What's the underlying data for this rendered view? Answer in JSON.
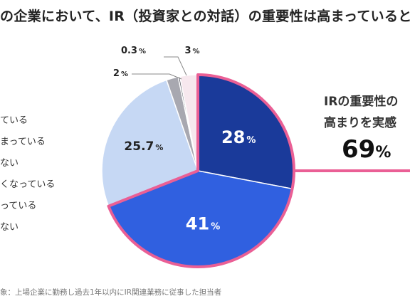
{
  "title": "の企業において、IR（投資家との対話）の重要性は高まっていると感",
  "note": "象：上場企業に勤務し過去1年以内にIR関連業務に従事した担当者",
  "callout": {
    "line1": "IRの重要性の",
    "line2": "高まりを実感",
    "value": "69",
    "unit": "%"
  },
  "legend": [
    "ている",
    "まっている",
    "ない",
    "くなっている",
    "っている",
    "ない"
  ],
  "colors": {
    "dark_blue": "#1a3a9a",
    "blue": "#3060e0",
    "light_blue": "#c6d8f4",
    "gray": "#a8a8b0",
    "dark_gray": "#555560",
    "pale_pink": "#f7e8ee",
    "highlight": "#ea5f95"
  },
  "chart_data": {
    "type": "pie",
    "title": "",
    "slices": [
      {
        "value": 28,
        "label": "28",
        "unit": "%",
        "color": "#1a3a9a",
        "text_color": "#ffffff",
        "highlight": true
      },
      {
        "value": 41,
        "label": "41",
        "unit": "%",
        "color": "#3060e0",
        "text_color": "#ffffff",
        "highlight": true
      },
      {
        "value": 25.7,
        "label": "25.7",
        "unit": "%",
        "color": "#c6d8f4",
        "text_color": "#222222",
        "highlight": false
      },
      {
        "value": 2,
        "label": "2",
        "unit": "%",
        "color": "#a8a8b0",
        "text_color": "#222222",
        "highlight": false
      },
      {
        "value": 0.3,
        "label": "0.3",
        "unit": "%",
        "color": "#555560",
        "text_color": "#222222",
        "highlight": false
      },
      {
        "value": 3,
        "label": "3",
        "unit": "%",
        "color": "#f7e8ee",
        "text_color": "#222222",
        "highlight": false
      }
    ],
    "start_angle_deg": 0,
    "direction": "clockwise"
  }
}
